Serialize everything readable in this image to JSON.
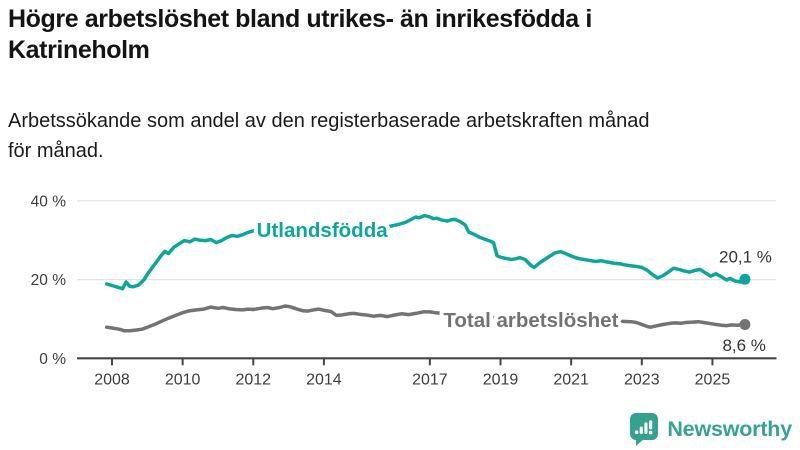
{
  "header": {
    "title": "Högre arbetslöshet bland utrikes- än inrikesfödda i\nKatrineholm",
    "subtitle": "Arbetssökande som andel av den registerbaserade arbetskraften månad\nför månad."
  },
  "logo": {
    "text": "Newsworthy",
    "icon": "newsworthy-bar-chart-speech-bubble-icon",
    "teal": "#35a28f",
    "text_color": "#35a292"
  },
  "colors": {
    "background": "#ffffff",
    "title_text": "#141414",
    "gridline": "#e3e3e3",
    "axis": "#454545",
    "tick_label": "#3c3c3c",
    "end_label": "#333333",
    "series_foreign_born": "#0ca69b",
    "series_total": "#737373"
  },
  "chart_data": {
    "type": "line",
    "title": "Högre arbetslöshet bland utrikes- än inrikesfödda i Katrineholm",
    "subtitle": "Arbetssökande som andel av den registerbaserade arbetskraften månad för månad.",
    "unit": "%",
    "grid": "horizontal-only",
    "legend_position": "inline-on-line",
    "x_axis": {
      "ticks": [
        2008,
        2010,
        2012,
        2014,
        2017,
        2019,
        2021,
        2023,
        2025
      ],
      "tick_labels": [
        "2008",
        "2010",
        "2012",
        "2014",
        "2017",
        "2019",
        "2021",
        "2023",
        "2025"
      ],
      "range": [
        2007.8,
        2026.8
      ]
    },
    "y_axis": {
      "ticks": [
        0,
        20,
        40
      ],
      "tick_labels": [
        "0 %",
        "20 %",
        "40 %"
      ],
      "range": [
        0,
        42
      ]
    },
    "series": [
      {
        "name": "Utlandsfödda",
        "color": "#0ca69b",
        "end_value": 20.1,
        "end_label": "20,1 %",
        "label_anchor": {
          "x": 2013.95,
          "y": 32.6
        },
        "points": [
          [
            2007.85,
            18.9
          ],
          [
            2008.0,
            18.5
          ],
          [
            2008.15,
            18.1
          ],
          [
            2008.3,
            17.7
          ],
          [
            2008.4,
            19.4
          ],
          [
            2008.5,
            18.3
          ],
          [
            2008.6,
            18.2
          ],
          [
            2008.75,
            18.6
          ],
          [
            2008.9,
            19.9
          ],
          [
            2009.0,
            21.3
          ],
          [
            2009.1,
            22.6
          ],
          [
            2009.25,
            24.4
          ],
          [
            2009.4,
            26.2
          ],
          [
            2009.5,
            27.2
          ],
          [
            2009.6,
            26.6
          ],
          [
            2009.75,
            28.2
          ],
          [
            2009.9,
            29.1
          ],
          [
            2010.05,
            29.9
          ],
          [
            2010.2,
            29.6
          ],
          [
            2010.35,
            30.3
          ],
          [
            2010.5,
            30.0
          ],
          [
            2010.65,
            29.9
          ],
          [
            2010.8,
            30.2
          ],
          [
            2010.95,
            29.4
          ],
          [
            2011.1,
            29.9
          ],
          [
            2011.25,
            30.7
          ],
          [
            2011.4,
            31.2
          ],
          [
            2011.55,
            31.0
          ],
          [
            2011.7,
            31.4
          ],
          [
            2011.85,
            32.0
          ],
          [
            2012.0,
            32.4
          ],
          [
            2012.3,
            32.7
          ],
          [
            2012.6,
            32.9
          ],
          [
            2012.9,
            32.6
          ],
          [
            2013.2,
            32.5
          ],
          [
            2013.5,
            32.7
          ],
          [
            2013.8,
            32.9
          ],
          [
            2014.1,
            33.0
          ],
          [
            2014.4,
            32.9
          ],
          [
            2014.7,
            33.1
          ],
          [
            2015.0,
            33.1
          ],
          [
            2015.3,
            33.3
          ],
          [
            2015.6,
            33.3
          ],
          [
            2015.9,
            33.6
          ],
          [
            2016.1,
            34.0
          ],
          [
            2016.3,
            34.5
          ],
          [
            2016.45,
            35.2
          ],
          [
            2016.6,
            35.9
          ],
          [
            2016.7,
            35.7
          ],
          [
            2016.85,
            36.3
          ],
          [
            2017.0,
            35.9
          ],
          [
            2017.1,
            35.5
          ],
          [
            2017.2,
            35.6
          ],
          [
            2017.35,
            35.1
          ],
          [
            2017.5,
            34.9
          ],
          [
            2017.6,
            35.2
          ],
          [
            2017.7,
            35.3
          ],
          [
            2017.85,
            34.8
          ],
          [
            2018.0,
            33.9
          ],
          [
            2018.1,
            32.1
          ],
          [
            2018.25,
            31.5
          ],
          [
            2018.4,
            30.8
          ],
          [
            2018.55,
            30.3
          ],
          [
            2018.7,
            29.8
          ],
          [
            2018.8,
            29.4
          ],
          [
            2018.9,
            26.1
          ],
          [
            2019.0,
            25.7
          ],
          [
            2019.15,
            25.4
          ],
          [
            2019.3,
            25.1
          ],
          [
            2019.45,
            25.3
          ],
          [
            2019.55,
            25.6
          ],
          [
            2019.7,
            25.1
          ],
          [
            2019.85,
            23.7
          ],
          [
            2019.95,
            23.1
          ],
          [
            2020.1,
            24.2
          ],
          [
            2020.25,
            25.1
          ],
          [
            2020.4,
            26.0
          ],
          [
            2020.55,
            26.8
          ],
          [
            2020.7,
            27.1
          ],
          [
            2020.85,
            26.6
          ],
          [
            2021.0,
            26.0
          ],
          [
            2021.15,
            25.5
          ],
          [
            2021.3,
            25.2
          ],
          [
            2021.5,
            24.9
          ],
          [
            2021.7,
            24.6
          ],
          [
            2021.85,
            24.8
          ],
          [
            2022.0,
            24.5
          ],
          [
            2022.2,
            24.2
          ],
          [
            2022.4,
            24.0
          ],
          [
            2022.6,
            23.6
          ],
          [
            2022.8,
            23.4
          ],
          [
            2023.0,
            23.1
          ],
          [
            2023.15,
            22.4
          ],
          [
            2023.3,
            21.3
          ],
          [
            2023.45,
            20.4
          ],
          [
            2023.6,
            21.0
          ],
          [
            2023.75,
            21.9
          ],
          [
            2023.9,
            22.9
          ],
          [
            2024.05,
            22.6
          ],
          [
            2024.2,
            22.2
          ],
          [
            2024.35,
            21.9
          ],
          [
            2024.5,
            22.3
          ],
          [
            2024.65,
            22.6
          ],
          [
            2024.8,
            21.7
          ],
          [
            2024.95,
            20.9
          ],
          [
            2025.1,
            21.5
          ],
          [
            2025.25,
            20.7
          ],
          [
            2025.4,
            19.9
          ],
          [
            2025.5,
            20.3
          ],
          [
            2025.65,
            19.6
          ],
          [
            2025.8,
            19.4
          ],
          [
            2025.92,
            20.1
          ]
        ]
      },
      {
        "name": "Total arbetslöshet",
        "color": "#737373",
        "end_value": 8.6,
        "end_label": "8,6 %",
        "label_anchor": {
          "x": 2019.86,
          "y": 9.7
        },
        "points": [
          [
            2007.85,
            7.9
          ],
          [
            2008.0,
            7.7
          ],
          [
            2008.2,
            7.4
          ],
          [
            2008.35,
            7.0
          ],
          [
            2008.5,
            7.0
          ],
          [
            2008.7,
            7.2
          ],
          [
            2008.85,
            7.4
          ],
          [
            2009.0,
            7.9
          ],
          [
            2009.2,
            8.6
          ],
          [
            2009.4,
            9.4
          ],
          [
            2009.6,
            10.2
          ],
          [
            2009.8,
            10.9
          ],
          [
            2010.0,
            11.6
          ],
          [
            2010.2,
            12.1
          ],
          [
            2010.4,
            12.3
          ],
          [
            2010.6,
            12.5
          ],
          [
            2010.8,
            13.0
          ],
          [
            2011.0,
            12.7
          ],
          [
            2011.15,
            12.9
          ],
          [
            2011.3,
            12.6
          ],
          [
            2011.5,
            12.4
          ],
          [
            2011.7,
            12.3
          ],
          [
            2011.85,
            12.5
          ],
          [
            2012.0,
            12.4
          ],
          [
            2012.2,
            12.7
          ],
          [
            2012.4,
            12.9
          ],
          [
            2012.55,
            12.6
          ],
          [
            2012.75,
            12.9
          ],
          [
            2012.9,
            13.3
          ],
          [
            2013.05,
            13.1
          ],
          [
            2013.2,
            12.6
          ],
          [
            2013.4,
            12.1
          ],
          [
            2013.55,
            12.0
          ],
          [
            2013.7,
            12.3
          ],
          [
            2013.85,
            12.5
          ],
          [
            2014.0,
            12.2
          ],
          [
            2014.2,
            11.9
          ],
          [
            2014.35,
            10.9
          ],
          [
            2014.5,
            11.0
          ],
          [
            2014.7,
            11.3
          ],
          [
            2014.85,
            11.4
          ],
          [
            2015.0,
            11.2
          ],
          [
            2015.2,
            11.0
          ],
          [
            2015.4,
            10.7
          ],
          [
            2015.6,
            10.9
          ],
          [
            2015.8,
            10.6
          ],
          [
            2016.0,
            11.0
          ],
          [
            2016.2,
            11.3
          ],
          [
            2016.4,
            11.1
          ],
          [
            2016.6,
            11.4
          ],
          [
            2016.8,
            11.8
          ],
          [
            2017.0,
            11.8
          ],
          [
            2017.15,
            11.6
          ],
          [
            2017.5,
            11.3
          ],
          [
            2018.0,
            11.0
          ],
          [
            2018.5,
            10.6
          ],
          [
            2019.0,
            10.2
          ],
          [
            2019.5,
            9.9
          ],
          [
            2020.0,
            10.3
          ],
          [
            2020.5,
            10.8
          ],
          [
            2021.0,
            10.4
          ],
          [
            2021.5,
            9.9
          ],
          [
            2022.0,
            9.6
          ],
          [
            2022.35,
            9.4
          ],
          [
            2022.7,
            9.3
          ],
          [
            2022.85,
            9.1
          ],
          [
            2023.0,
            8.6
          ],
          [
            2023.15,
            8.1
          ],
          [
            2023.25,
            7.9
          ],
          [
            2023.45,
            8.3
          ],
          [
            2023.6,
            8.6
          ],
          [
            2023.8,
            8.9
          ],
          [
            2023.95,
            9.0
          ],
          [
            2024.1,
            8.9
          ],
          [
            2024.25,
            9.1
          ],
          [
            2024.45,
            9.2
          ],
          [
            2024.6,
            9.3
          ],
          [
            2024.75,
            9.1
          ],
          [
            2024.9,
            8.9
          ],
          [
            2025.1,
            8.6
          ],
          [
            2025.25,
            8.4
          ],
          [
            2025.4,
            8.3
          ],
          [
            2025.55,
            8.5
          ],
          [
            2025.7,
            8.4
          ],
          [
            2025.92,
            8.6
          ]
        ]
      }
    ]
  }
}
